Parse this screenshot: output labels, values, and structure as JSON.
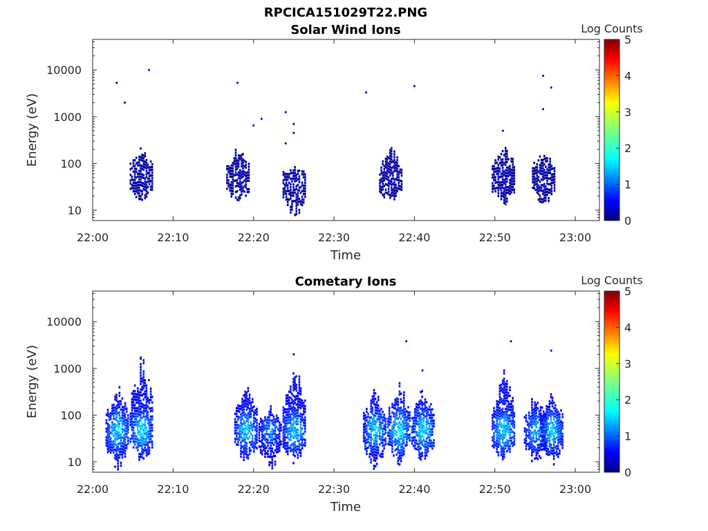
{
  "figure": {
    "filename": "RPCICA151029T22.PNG"
  },
  "colors": {
    "axis": "#262626",
    "background": "#ffffff"
  },
  "colormap": {
    "name": "jet",
    "label": "Log Counts",
    "min": 0,
    "max": 5,
    "ticks": [
      "0",
      "1",
      "2",
      "3",
      "4",
      "5"
    ]
  },
  "chart_data": [
    {
      "type": "heatmap",
      "title": "Solar Wind Ions",
      "xlabel": "Time",
      "ylabel": "Energy (eV)",
      "yscale": "log",
      "ylim": [
        6,
        45000
      ],
      "xlim_minutes": [
        0,
        63
      ],
      "xticks": [
        "22:00",
        "22:10",
        "22:20",
        "22:30",
        "22:40",
        "22:50",
        "23:00"
      ],
      "yticks": [
        "10",
        "100",
        "1000",
        "10000"
      ],
      "ytick_values": [
        10,
        100,
        1000,
        10000
      ],
      "colorbar_label": "Log Counts",
      "bursts": [
        {
          "t": "22:06",
          "e_min": 12,
          "e_max": 250,
          "log_counts": 0.3
        },
        {
          "t": "22:18",
          "e_min": 12,
          "e_max": 230,
          "log_counts": 0.3
        },
        {
          "t": "22:25",
          "e_min": 6,
          "e_max": 100,
          "log_counts": 0.3
        },
        {
          "t": "22:37",
          "e_min": 12,
          "e_max": 230,
          "log_counts": 0.3
        },
        {
          "t": "22:51",
          "e_min": 12,
          "e_max": 300,
          "log_counts": 0.3
        },
        {
          "t": "22:56",
          "e_min": 12,
          "e_max": 210,
          "log_counts": 0.3
        }
      ],
      "points": [
        {
          "t": "22:03",
          "e": 5300
        },
        {
          "t": "22:04",
          "e": 2000
        },
        {
          "t": "22:07",
          "e": 10000
        },
        {
          "t": "22:18",
          "e": 5300
        },
        {
          "t": "22:20",
          "e": 650
        },
        {
          "t": "22:21",
          "e": 900
        },
        {
          "t": "22:24",
          "e": 270
        },
        {
          "t": "22:24",
          "e": 1250
        },
        {
          "t": "22:25",
          "e": 700
        },
        {
          "t": "22:25",
          "e": 450
        },
        {
          "t": "22:34",
          "e": 3300
        },
        {
          "t": "22:40",
          "e": 4500
        },
        {
          "t": "22:51",
          "e": 500
        },
        {
          "t": "22:56",
          "e": 7500
        },
        {
          "t": "22:56",
          "e": 1450
        },
        {
          "t": "22:57",
          "e": 4200
        }
      ]
    },
    {
      "type": "heatmap",
      "title": "Cometary Ions",
      "xlabel": "Time",
      "ylabel": "Energy (eV)",
      "yscale": "log",
      "ylim": [
        6,
        45000
      ],
      "xlim_minutes": [
        0,
        63
      ],
      "xticks": [
        "22:00",
        "22:10",
        "22:20",
        "22:30",
        "22:40",
        "22:50",
        "23:00"
      ],
      "yticks": [
        "10",
        "100",
        "1000",
        "10000"
      ],
      "ytick_values": [
        10,
        100,
        1000,
        10000
      ],
      "colorbar_label": "Log Counts",
      "bursts": [
        {
          "t": "22:03",
          "e_min": 6,
          "e_max": 450,
          "log_counts": 1.8
        },
        {
          "t": "22:06",
          "e_min": 8,
          "e_max": 2000,
          "log_counts": 1.8
        },
        {
          "t": "22:19",
          "e_min": 8,
          "e_max": 600,
          "log_counts": 1.7
        },
        {
          "t": "22:22",
          "e_min": 6,
          "e_max": 150,
          "log_counts": 1.3
        },
        {
          "t": "22:25",
          "e_min": 8,
          "e_max": 1300,
          "log_counts": 1.7
        },
        {
          "t": "22:35",
          "e_min": 6,
          "e_max": 350,
          "log_counts": 1.7
        },
        {
          "t": "22:38",
          "e_min": 8,
          "e_max": 500,
          "log_counts": 1.9
        },
        {
          "t": "22:41",
          "e_min": 8,
          "e_max": 400,
          "log_counts": 1.8
        },
        {
          "t": "22:51",
          "e_min": 8,
          "e_max": 1000,
          "log_counts": 1.8
        },
        {
          "t": "22:55",
          "e_min": 8,
          "e_max": 300,
          "log_counts": 1.5
        },
        {
          "t": "22:57",
          "e_min": 8,
          "e_max": 300,
          "log_counts": 1.7
        }
      ],
      "points": [
        {
          "t": "22:06",
          "e": 1700
        },
        {
          "t": "22:07",
          "e": 560
        },
        {
          "t": "22:25",
          "e": 2000
        },
        {
          "t": "22:39",
          "e": 3800
        },
        {
          "t": "22:41",
          "e": 900
        },
        {
          "t": "22:52",
          "e": 3800
        },
        {
          "t": "22:57",
          "e": 2400
        }
      ]
    }
  ]
}
